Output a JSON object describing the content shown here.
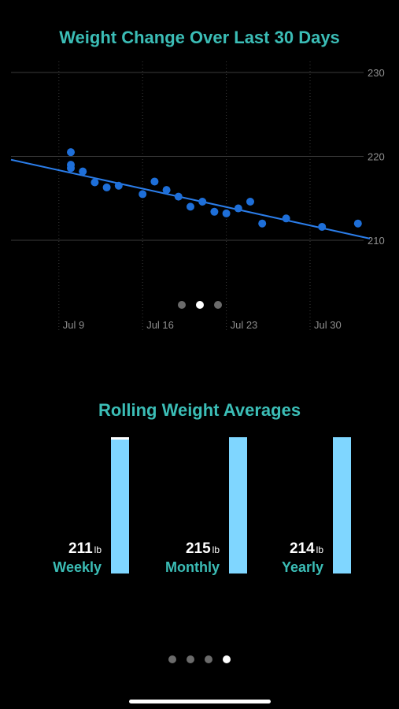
{
  "chart_title": "Weight Change Over Last 30 Days",
  "chart_data": {
    "type": "scatter",
    "title": "Weight Change Over Last 30 Days",
    "x_axis": {
      "type": "date",
      "ticks": [
        "Jul 9",
        "Jul 16",
        "Jul 23",
        "Jul 30"
      ]
    },
    "y_axis": {
      "range": [
        200,
        230
      ],
      "ticks": [
        "230",
        "220",
        "210"
      ],
      "position": "right"
    },
    "grid": true,
    "points": [
      {
        "x": "2019-07-08",
        "y": 220.5
      },
      {
        "x": "2019-07-08",
        "y": 219.0
      },
      {
        "x": "2019-07-08",
        "y": 218.6
      },
      {
        "x": "2019-07-09",
        "y": 218.2
      },
      {
        "x": "2019-07-10",
        "y": 216.9
      },
      {
        "x": "2019-07-11",
        "y": 216.3
      },
      {
        "x": "2019-07-12",
        "y": 216.5
      },
      {
        "x": "2019-07-14",
        "y": 215.5
      },
      {
        "x": "2019-07-15",
        "y": 217.0
      },
      {
        "x": "2019-07-16",
        "y": 216.0
      },
      {
        "x": "2019-07-17",
        "y": 215.2
      },
      {
        "x": "2019-07-18",
        "y": 214.0
      },
      {
        "x": "2019-07-19",
        "y": 214.6
      },
      {
        "x": "2019-07-20",
        "y": 213.4
      },
      {
        "x": "2019-07-21",
        "y": 213.2
      },
      {
        "x": "2019-07-22",
        "y": 213.8
      },
      {
        "x": "2019-07-23",
        "y": 214.6
      },
      {
        "x": "2019-07-24",
        "y": 212.0
      },
      {
        "x": "2019-07-26",
        "y": 212.6
      },
      {
        "x": "2019-07-29",
        "y": 211.6
      },
      {
        "x": "2019-08-01",
        "y": 212.0
      }
    ],
    "trend_line": {
      "start": {
        "x": "2019-07-03",
        "y": 219.6
      },
      "end": {
        "x": "2019-08-02",
        "y": 210.2
      }
    },
    "colors": {
      "points": "#1e6fd9",
      "trend": "#2b7de9",
      "grid": "#3a3a3a",
      "tick_label": "#8e8e8e"
    }
  },
  "chart_pager": {
    "count": 3,
    "active": 1
  },
  "averages": {
    "title": "Rolling Weight Averages",
    "unit": "lb",
    "items": [
      {
        "value": "211",
        "label": "Weekly",
        "fill": 0.98
      },
      {
        "value": "215",
        "label": "Monthly",
        "fill": 1.0
      },
      {
        "value": "214",
        "label": "Yearly",
        "fill": 1.0
      }
    ]
  },
  "page_pager": {
    "count": 4,
    "active": 3
  }
}
